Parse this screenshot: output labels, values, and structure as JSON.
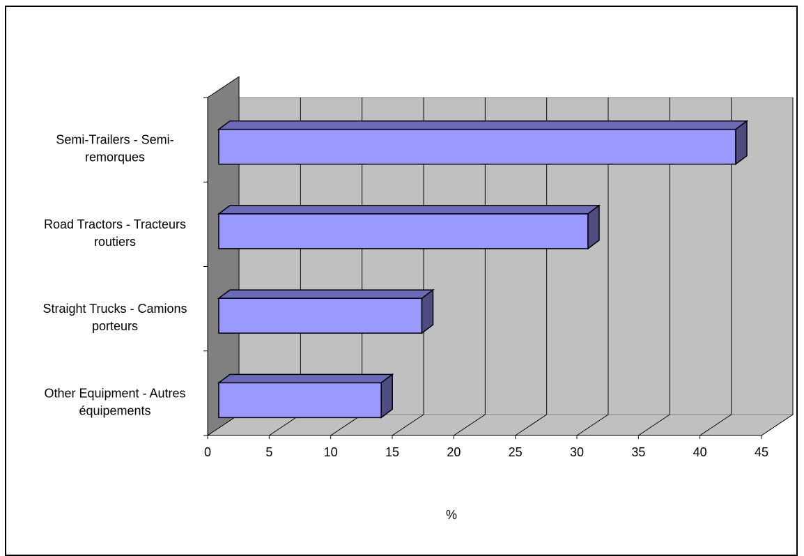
{
  "chart_data": {
    "type": "bar",
    "orientation": "horizontal",
    "style": "3d",
    "categories": [
      [
        "Semi-Trailers - Semi-",
        "remorques"
      ],
      [
        "Road Tractors - Tracteurs",
        "routiers"
      ],
      [
        "Straight Trucks - Camions",
        "porteurs"
      ],
      [
        "Other Equipment - Autres",
        "équipements"
      ]
    ],
    "values": [
      42,
      30,
      16.5,
      13.2
    ],
    "xlabel": "%",
    "xlim": [
      0,
      45
    ],
    "xticks": [
      "0",
      "5",
      "10",
      "15",
      "20",
      "25",
      "30",
      "35",
      "40",
      "45"
    ],
    "grid": true,
    "colors": {
      "bar_front": "#9999ff",
      "bar_top": "#6a6ab8",
      "bar_side": "#4d4d80",
      "back_wall": "#c0c0c0",
      "side_wall": "#808080",
      "floor": "#c0c0c0"
    }
  }
}
